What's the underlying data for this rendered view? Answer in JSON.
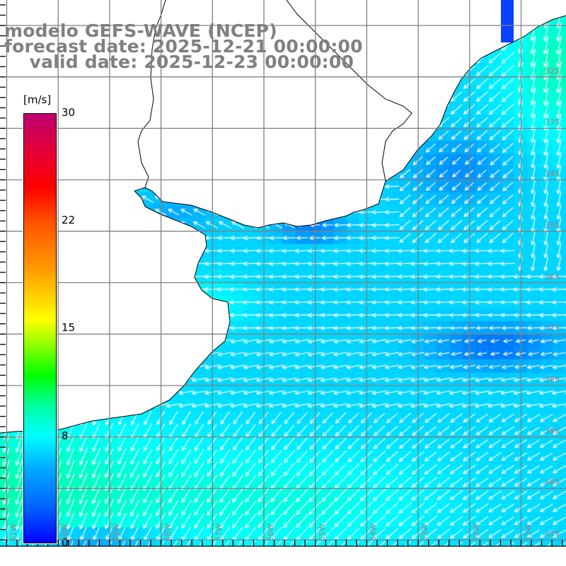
{
  "title": {
    "line1": "modelo GEFS-WAVE (NCEP)",
    "line2": "forecast date: 2025-12-21 00:00:00",
    "line3": "    valid date: 2025-12-23 00:00:00"
  },
  "colorbar": {
    "unit": "[m/s]",
    "labels": [
      "30",
      "22",
      "15",
      "8",
      "0"
    ],
    "min": 0,
    "max": 30,
    "colors": {
      "0": "#0000ff",
      "8": "#00ffff",
      "12": "#00ff00",
      "16": "#ffff00",
      "25": "#ff0000",
      "30": "#c00070"
    }
  },
  "axes": {
    "longitudes": [
      "61W",
      "60W",
      "59W",
      "58W",
      "57W",
      "56W",
      "55W",
      "54W",
      "53W",
      "52W",
      "51W"
    ],
    "latitudes": [
      "32S",
      "33S",
      "34S",
      "35S",
      "36S",
      "37S",
      "38S",
      "39S",
      "40S",
      "41S"
    ]
  },
  "colors": {
    "grid": "#808080",
    "coast": "#000000",
    "arrow": "#ffffff",
    "label": "#a08080"
  }
}
